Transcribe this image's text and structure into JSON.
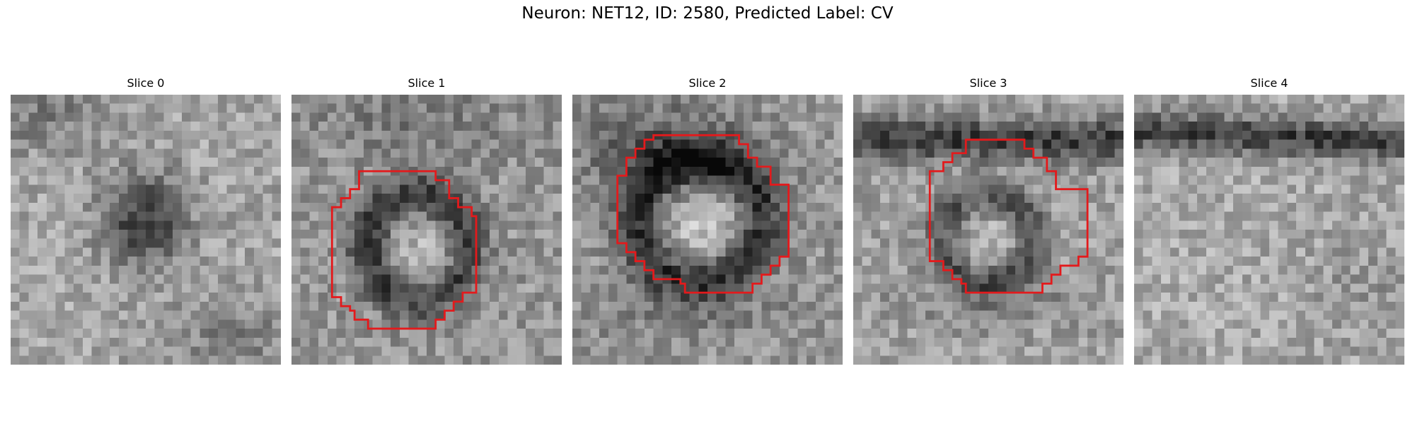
{
  "figure": {
    "title": "Neuron: NET12, ID: 2580, Predicted Label: CV"
  },
  "colors": {
    "contour": "#e31a1c",
    "background": "#ffffff"
  },
  "slices": [
    {
      "title": "Slice 0",
      "contour": false
    },
    {
      "title": "Slice 1",
      "contour": true
    },
    {
      "title": "Slice 2",
      "contour": true
    },
    {
      "title": "Slice 3",
      "contour": true
    },
    {
      "title": "Slice 4",
      "contour": false
    }
  ]
}
